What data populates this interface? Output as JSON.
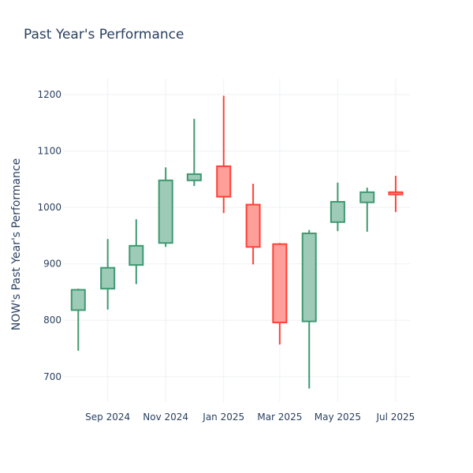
{
  "chart_data": {
    "type": "candlestick",
    "title": "Past Year's Performance",
    "xlabel": "",
    "ylabel": "NOW's Past Year's Performance",
    "ylim": [
      655,
      1228
    ],
    "yticks": [
      700,
      800,
      900,
      1000,
      1100,
      1200
    ],
    "xticks": [
      {
        "label": "Sep 2024",
        "x": "2024-09-01"
      },
      {
        "label": "Nov 2024",
        "x": "2024-11-01"
      },
      {
        "label": "Jan 2025",
        "x": "2025-01-01"
      },
      {
        "label": "Mar 2025",
        "x": "2025-03-01"
      },
      {
        "label": "May 2025",
        "x": "2025-05-01"
      },
      {
        "label": "Jul 2025",
        "x": "2025-07-01"
      }
    ],
    "xlim": [
      "2024-07-16",
      "2025-07-16"
    ],
    "grid": true,
    "legend": "none",
    "colors": {
      "increasing": "#3d9970",
      "increasing_fill": "#9ecbb7",
      "decreasing": "#ff4136",
      "decreasing_fill": "#ff9f9a"
    },
    "candles": [
      {
        "date": "2024-08-01",
        "open": 818,
        "high": 856,
        "low": 746,
        "close": 854
      },
      {
        "date": "2024-09-01",
        "open": 856,
        "high": 944,
        "low": 819,
        "close": 893
      },
      {
        "date": "2024-10-01",
        "open": 898,
        "high": 979,
        "low": 864,
        "close": 932
      },
      {
        "date": "2024-11-01",
        "open": 937,
        "high": 1071,
        "low": 930,
        "close": 1048
      },
      {
        "date": "2024-12-01",
        "open": 1048,
        "high": 1157,
        "low": 1038,
        "close": 1059
      },
      {
        "date": "2025-01-01",
        "open": 1073,
        "high": 1198,
        "low": 990,
        "close": 1019
      },
      {
        "date": "2025-02-01",
        "open": 1005,
        "high": 1042,
        "low": 899,
        "close": 930
      },
      {
        "date": "2025-03-01",
        "open": 935,
        "high": 937,
        "low": 757,
        "close": 796
      },
      {
        "date": "2025-04-01",
        "open": 798,
        "high": 960,
        "low": 679,
        "close": 954
      },
      {
        "date": "2025-05-01",
        "open": 974,
        "high": 1044,
        "low": 958,
        "close": 1010
      },
      {
        "date": "2025-06-01",
        "open": 1009,
        "high": 1035,
        "low": 957,
        "close": 1027
      },
      {
        "date": "2025-07-01",
        "open": 1027,
        "high": 1056,
        "low": 992,
        "close": 1023
      }
    ]
  }
}
